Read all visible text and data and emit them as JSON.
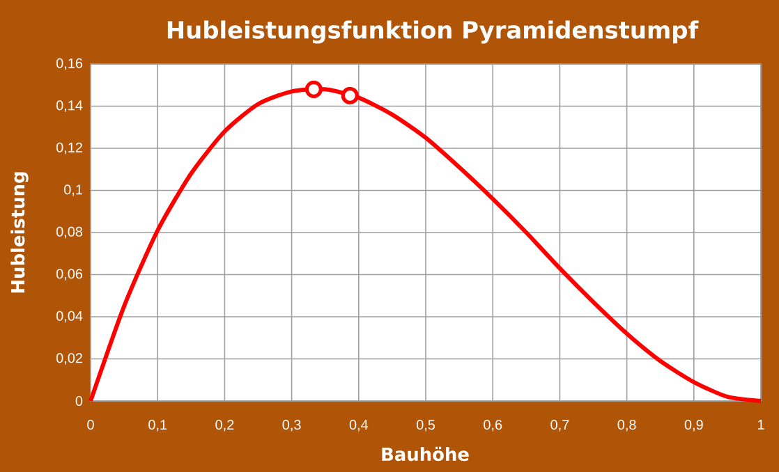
{
  "chart_data": {
    "type": "line",
    "title": "Hubleistungsfunktion Pyramidenstumpf",
    "xlabel": "Bauhöhe",
    "ylabel": "Hubleistung",
    "xlim": [
      0,
      1
    ],
    "ylim": [
      0,
      0.16
    ],
    "xticks": [
      0,
      {
        "value": 0.1,
        "label": "0,1"
      },
      {
        "value": 0.2,
        "label": "0,2"
      },
      {
        "value": 0.3,
        "label": "0,3"
      },
      {
        "value": 0.4,
        "label": "0,4"
      },
      {
        "value": 0.5,
        "label": "0,5"
      },
      {
        "value": 0.6,
        "label": "0,6"
      },
      {
        "value": 0.7,
        "label": "0,7"
      },
      {
        "value": 0.8,
        "label": "0,8"
      },
      {
        "value": 0.9,
        "label": "0,9"
      },
      1
    ],
    "yticks": [
      0,
      {
        "value": 0.02,
        "label": "0,02"
      },
      {
        "value": 0.04,
        "label": "0,04"
      },
      {
        "value": 0.06,
        "label": "0,06"
      },
      {
        "value": 0.08,
        "label": "0,08"
      },
      {
        "value": 0.1,
        "label": "0,1"
      },
      {
        "value": 0.12,
        "label": "0,12"
      },
      {
        "value": 0.14,
        "label": "0,14"
      },
      {
        "value": 0.16,
        "label": "0,16"
      }
    ],
    "grid": true,
    "line_style": "solid",
    "series": [
      {
        "color": "#ff0000",
        "x": [
          0,
          0.05,
          0.1,
          0.15,
          0.2,
          0.25,
          0.3,
          0.35,
          0.4,
          0.45,
          0.5,
          0.55,
          0.6,
          0.65,
          0.7,
          0.75,
          0.8,
          0.85,
          0.9,
          0.95,
          1
        ],
        "values": [
          0,
          0.045,
          0.081,
          0.108,
          0.128,
          0.141,
          0.147,
          0.148,
          0.144,
          0.136,
          0.125,
          0.111,
          0.096,
          0.08,
          0.063,
          0.047,
          0.032,
          0.019,
          0.009,
          0.002,
          0
        ]
      },
      {
        "type": "scatter",
        "color": "#ff0000",
        "x": [
          0.333,
          0.387
        ],
        "values": [
          0.148,
          0.145
        ]
      }
    ]
  }
}
